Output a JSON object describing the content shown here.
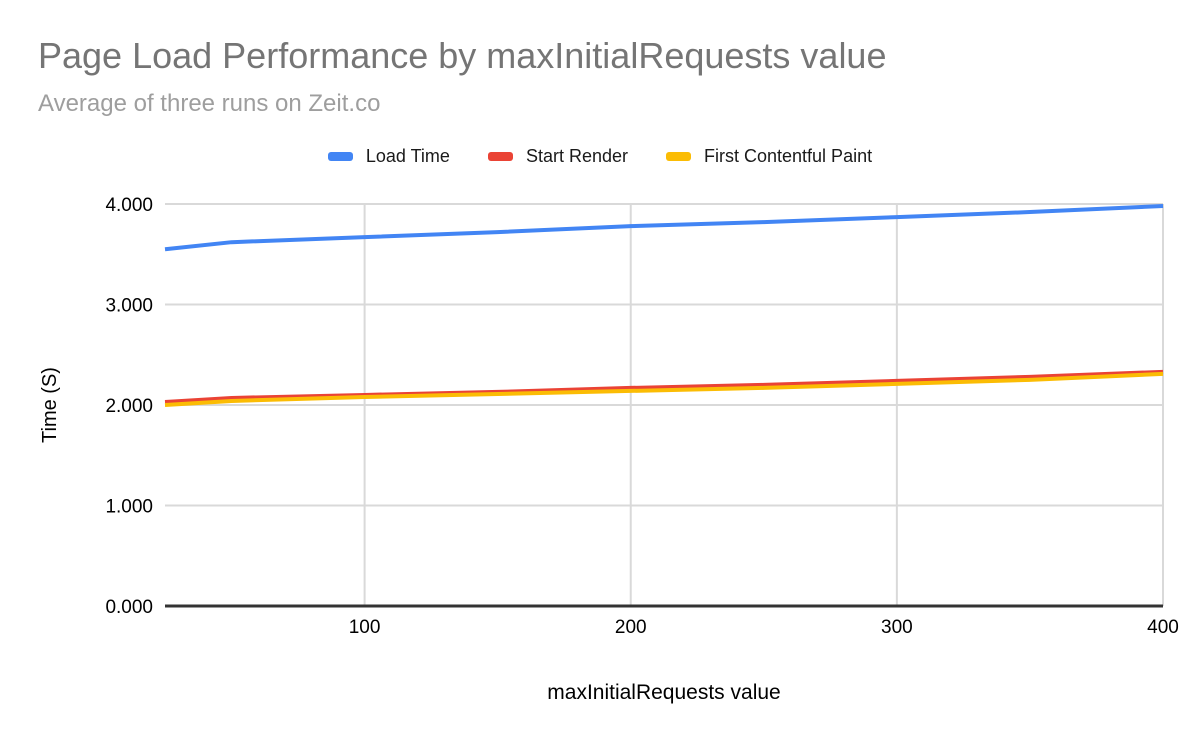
{
  "header": {
    "title": "Page Load Performance by maxInitialRequests value",
    "subtitle": "Average of three runs on Zeit.co",
    "title_color": "#757575",
    "subtitle_color": "#9e9e9e"
  },
  "chart_data": {
    "type": "line",
    "title": "Page Load Performance by maxInitialRequests value",
    "subtitle": "Average of three runs on Zeit.co",
    "xlabel": "maxInitialRequests value",
    "ylabel": "Time (S)",
    "xlim": [
      25,
      400
    ],
    "ylim": [
      0,
      4
    ],
    "grid": true,
    "legend_position": "top",
    "x_ticks": {
      "values": [
        100,
        200,
        300,
        400
      ],
      "labels": [
        "100",
        "200",
        "300",
        "400"
      ]
    },
    "y_ticks": {
      "values": [
        0,
        1,
        2,
        3,
        4
      ],
      "labels": [
        "0.000",
        "1.000",
        "2.000",
        "3.000",
        "4.000"
      ]
    },
    "x": [
      25,
      50,
      100,
      150,
      200,
      250,
      300,
      350,
      400
    ],
    "series": [
      {
        "name": "Load Time",
        "color": "#4285f4",
        "values": [
          3.55,
          3.62,
          3.67,
          3.72,
          3.78,
          3.82,
          3.87,
          3.92,
          3.98
        ]
      },
      {
        "name": "Start Render",
        "color": "#ea4335",
        "values": [
          2.03,
          2.07,
          2.1,
          2.13,
          2.17,
          2.2,
          2.24,
          2.28,
          2.33
        ]
      },
      {
        "name": "First Contentful Paint",
        "color": "#fbbc04",
        "values": [
          2.0,
          2.04,
          2.08,
          2.11,
          2.14,
          2.17,
          2.21,
          2.25,
          2.31
        ]
      }
    ],
    "axis_colors": {
      "grid": "#d9d9d9",
      "baseline": "#333333",
      "tick_text": "#000000",
      "axis_title_text": "#000000"
    }
  }
}
